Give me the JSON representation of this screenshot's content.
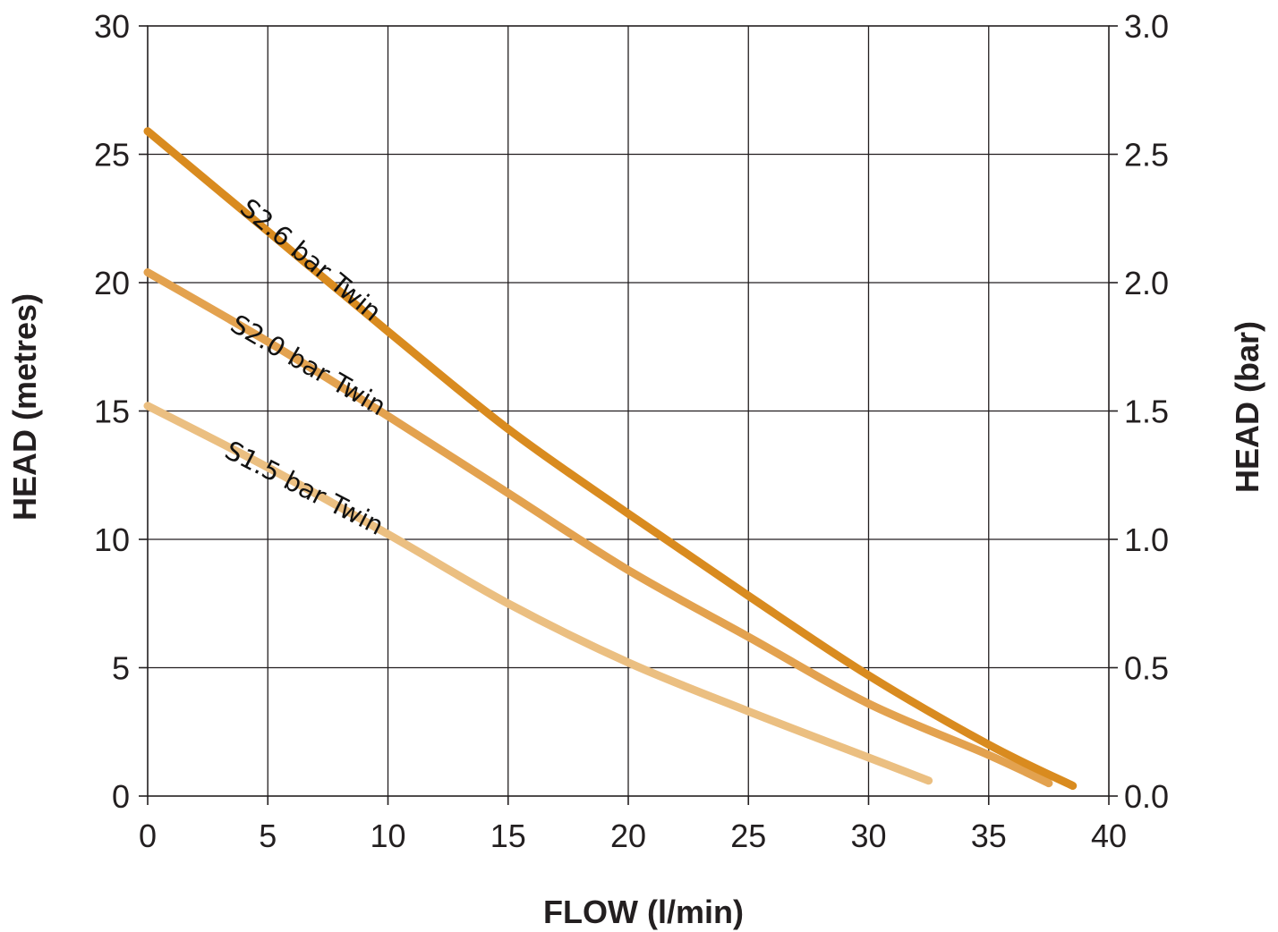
{
  "chart_data": {
    "type": "line",
    "title": "",
    "xlabel": "FLOW (l/min)",
    "ylabel": "HEAD (metres)",
    "y2label": "HEAD (bar)",
    "xlim": [
      0,
      40
    ],
    "ylim": [
      0,
      30
    ],
    "y2lim": [
      0,
      3.0
    ],
    "grid": true,
    "x_ticks": [
      "0",
      "5",
      "10",
      "15",
      "20",
      "25",
      "30",
      "35",
      "40"
    ],
    "y_ticks": [
      "0",
      "5",
      "10",
      "15",
      "20",
      "25",
      "30"
    ],
    "y2_ticks": [
      "0.0",
      "0.5",
      "1.0",
      "1.5",
      "2.0",
      "2.5",
      "3.0"
    ],
    "series": [
      {
        "name": "S2.6 bar Twin",
        "color": "#d98b1f",
        "points": [
          [
            0,
            25.9
          ],
          [
            5,
            22.0
          ],
          [
            10,
            18.1
          ],
          [
            15,
            14.3
          ],
          [
            20,
            11.0
          ],
          [
            25,
            7.8
          ],
          [
            30,
            4.7
          ],
          [
            35,
            2.0
          ],
          [
            38.5,
            0.4
          ]
        ]
      },
      {
        "name": "S2.0 bar Twin",
        "color": "#e3a24f",
        "points": [
          [
            0,
            20.4
          ],
          [
            5,
            17.7
          ],
          [
            10,
            14.8
          ],
          [
            15,
            11.8
          ],
          [
            20,
            8.8
          ],
          [
            25,
            6.2
          ],
          [
            30,
            3.6
          ],
          [
            35,
            1.6
          ],
          [
            37.5,
            0.5
          ]
        ]
      },
      {
        "name": "S1.5 bar Twin",
        "color": "#ebbf81",
        "points": [
          [
            0,
            15.2
          ],
          [
            5,
            12.8
          ],
          [
            10,
            10.2
          ],
          [
            15,
            7.5
          ],
          [
            20,
            5.2
          ],
          [
            25,
            3.3
          ],
          [
            30,
            1.5
          ],
          [
            32.5,
            0.6
          ]
        ]
      }
    ]
  }
}
